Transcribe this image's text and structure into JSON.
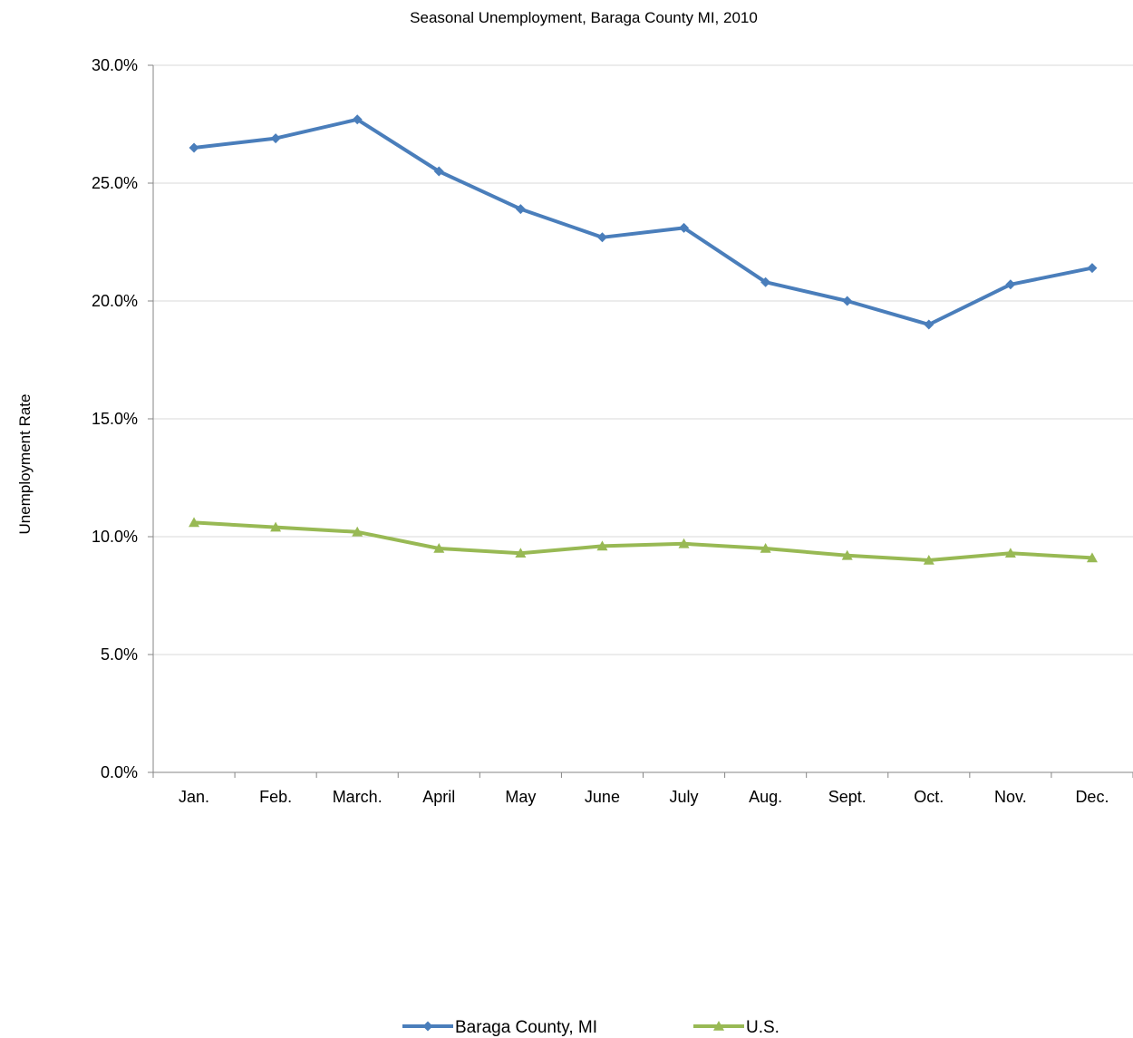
{
  "chart_data": {
    "type": "line",
    "title": "Seasonal Unemployment, Baraga County MI, 2010",
    "xlabel": "",
    "ylabel": "Unemployment Rate",
    "categories": [
      "Jan.",
      "Feb.",
      "March.",
      "April",
      "May",
      "June",
      "July",
      "Aug.",
      "Sept.",
      "Oct.",
      "Nov.",
      "Dec."
    ],
    "ylim": [
      0,
      30
    ],
    "yticks": [
      "0.0%",
      "5.0%",
      "10.0%",
      "15.0%",
      "20.0%",
      "25.0%",
      "30.0%"
    ],
    "grid": true,
    "legend_position": "bottom",
    "series": [
      {
        "name": "Baraga County, MI",
        "color": "#4a7ebb",
        "marker": "diamond",
        "values": [
          26.5,
          26.9,
          27.7,
          25.5,
          23.9,
          22.7,
          23.1,
          20.8,
          20.0,
          19.0,
          20.7,
          21.4
        ]
      },
      {
        "name": "U.S.",
        "color": "#98b954",
        "marker": "triangle",
        "values": [
          10.6,
          10.4,
          10.2,
          9.5,
          9.3,
          9.6,
          9.7,
          9.5,
          9.2,
          9.0,
          9.3,
          9.1
        ]
      }
    ]
  }
}
